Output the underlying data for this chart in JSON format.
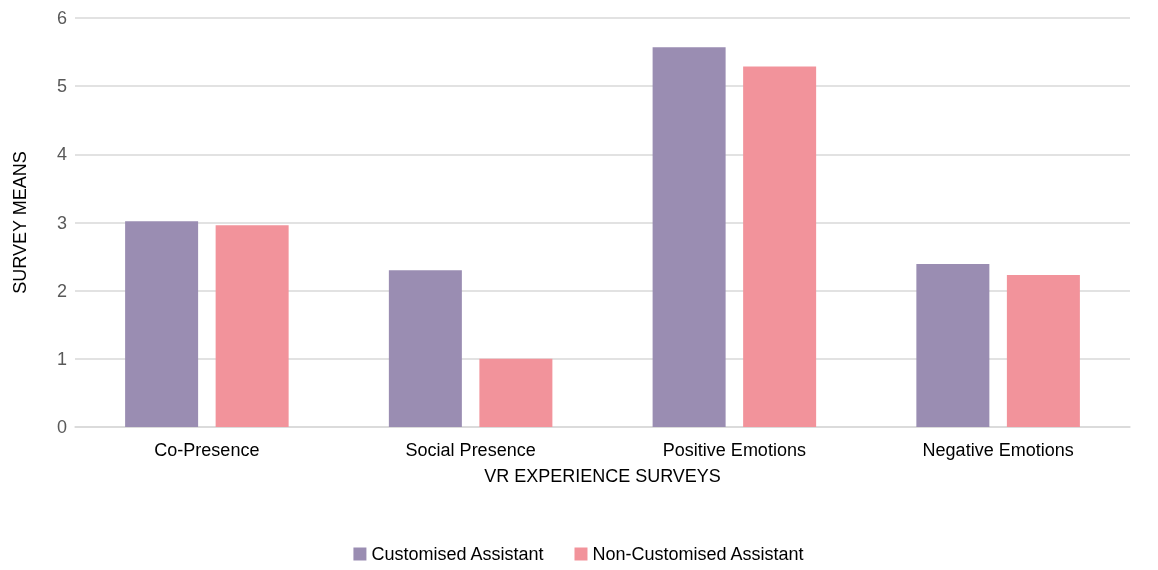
{
  "chart_data": {
    "type": "bar",
    "xlabel": "VR EXPERIENCE SURVEYS",
    "ylabel": "SURVEY MEANS",
    "categories": [
      "Co-Presence",
      "Social Presence",
      "Positive Emotions",
      "Negative Emotions"
    ],
    "series": [
      {
        "name": "Customised Assistant",
        "color": "#9a8db2",
        "values": [
          3.02,
          2.3,
          5.57,
          2.39
        ]
      },
      {
        "name": "Non-Customised Assistant",
        "color": "#f2939b",
        "values": [
          2.96,
          1.0,
          5.29,
          2.23
        ]
      }
    ],
    "ylim": [
      0,
      6
    ],
    "yticks": [
      0,
      1,
      2,
      3,
      4,
      5,
      6
    ],
    "grid": "y",
    "legend": "bottom"
  }
}
